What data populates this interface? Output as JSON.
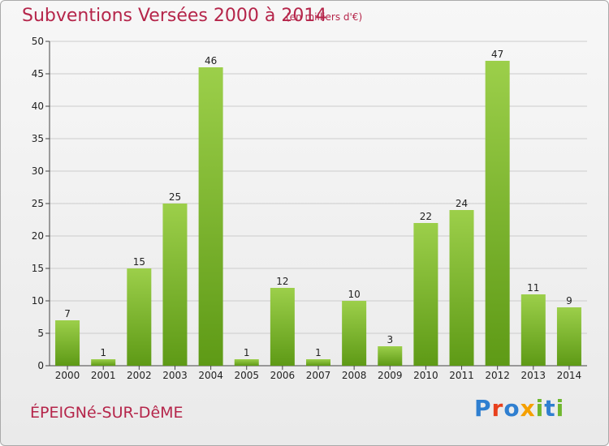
{
  "header": {
    "title": "Subventions Versées 2000 à 2014",
    "unit_note": "(en milliers d'€)"
  },
  "footer": {
    "commune": "ÉPEIGNé-SUR-DêME",
    "logo_letters": [
      "P",
      "r",
      "o",
      "x",
      "i",
      "t",
      "i"
    ]
  },
  "colors": {
    "title": "#b5254a",
    "bar_top": "#9ccf4a",
    "bar_bottom": "#5e9a16",
    "grid": "#cccccc",
    "logo": [
      "#2f7fd0",
      "#e8401c",
      "#2f7fd0",
      "#f5a000",
      "#6fb72e",
      "#2f7fd0",
      "#6fb72e"
    ]
  },
  "chart_data": {
    "type": "bar",
    "title": "Subventions Versées 2000 à 2014",
    "xlabel": "",
    "ylabel": "",
    "categories": [
      "2000",
      "2001",
      "2002",
      "2003",
      "2004",
      "2005",
      "2006",
      "2007",
      "2008",
      "2009",
      "2010",
      "2011",
      "2012",
      "2013",
      "2014"
    ],
    "values": [
      7,
      1,
      15,
      25,
      46,
      1,
      12,
      1,
      10,
      3,
      22,
      24,
      47,
      11,
      9
    ],
    "ylim": [
      0,
      50
    ],
    "yticks": [
      0,
      5,
      10,
      15,
      20,
      25,
      30,
      35,
      40,
      45,
      50
    ],
    "grid": true,
    "data_labels": true
  }
}
